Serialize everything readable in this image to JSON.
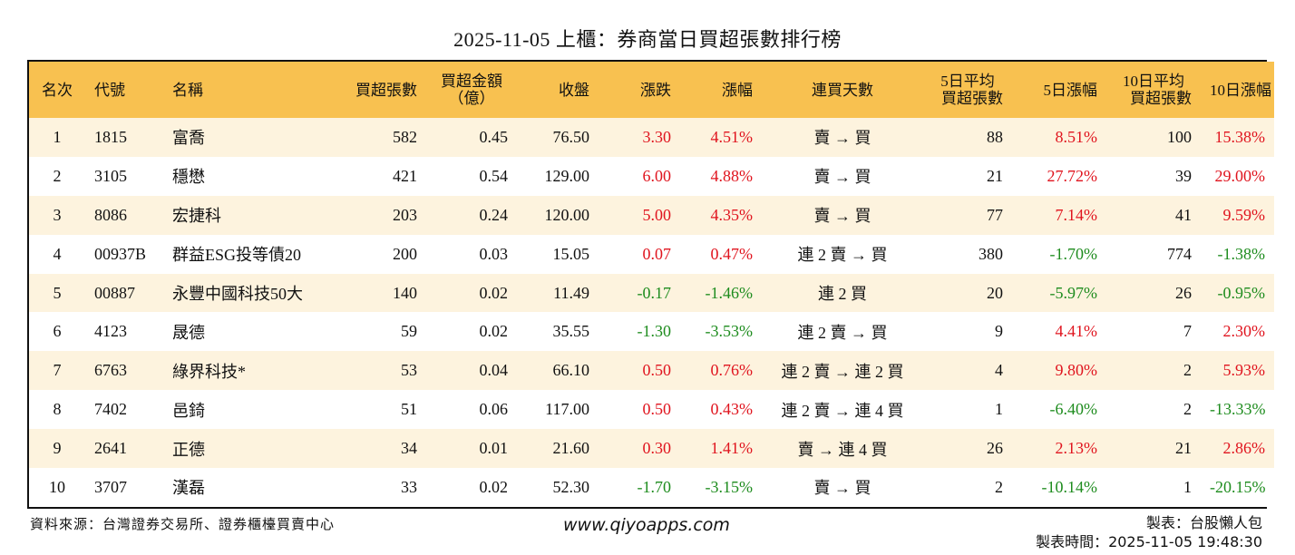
{
  "title": "2025-11-05 上櫃：券商當日買超張數排行榜",
  "colors": {
    "header_bg": "#F8C150",
    "row_alt_bg": "#FDF3DE",
    "row_bg": "#FFFFFF",
    "up": "#E0141E",
    "down": "#1E8C1E",
    "border": "#111111"
  },
  "table": {
    "headers": [
      {
        "key": "rank",
        "label": "名次"
      },
      {
        "key": "code",
        "label": "代號"
      },
      {
        "key": "name",
        "label": "名稱"
      },
      {
        "key": "net_buy_lots",
        "label": "買超張數"
      },
      {
        "key": "net_buy_amount",
        "label": "買超金額",
        "label2": "（億）"
      },
      {
        "key": "close",
        "label": "收盤"
      },
      {
        "key": "change",
        "label": "漲跌"
      },
      {
        "key": "change_pct",
        "label": "漲幅"
      },
      {
        "key": "streak",
        "label": "連買天數"
      },
      {
        "key": "avg5_net_buy",
        "label": "5日平均",
        "label2": "買超張數"
      },
      {
        "key": "pct5",
        "label": "5日漲幅"
      },
      {
        "key": "avg10_net_buy",
        "label": "10日平均",
        "label2": "買超張數"
      },
      {
        "key": "pct10",
        "label": "10日漲幅"
      }
    ],
    "rows": [
      {
        "rank": "1",
        "code": "1815",
        "name": "富喬",
        "net_buy_lots": "582",
        "net_buy_amount": "0.45",
        "close": "76.50",
        "change": "3.30",
        "change_pct": "4.51%",
        "streak": "賣 → 買",
        "avg5_net_buy": "88",
        "pct5": "8.51%",
        "avg10_net_buy": "100",
        "pct10": "15.38%"
      },
      {
        "rank": "2",
        "code": "3105",
        "name": "穩懋",
        "net_buy_lots": "421",
        "net_buy_amount": "0.54",
        "close": "129.00",
        "change": "6.00",
        "change_pct": "4.88%",
        "streak": "賣 → 買",
        "avg5_net_buy": "21",
        "pct5": "27.72%",
        "avg10_net_buy": "39",
        "pct10": "29.00%"
      },
      {
        "rank": "3",
        "code": "8086",
        "name": "宏捷科",
        "net_buy_lots": "203",
        "net_buy_amount": "0.24",
        "close": "120.00",
        "change": "5.00",
        "change_pct": "4.35%",
        "streak": "賣 → 買",
        "avg5_net_buy": "77",
        "pct5": "7.14%",
        "avg10_net_buy": "41",
        "pct10": "9.59%"
      },
      {
        "rank": "4",
        "code": "00937B",
        "name": "群益ESG投等債20",
        "net_buy_lots": "200",
        "net_buy_amount": "0.03",
        "close": "15.05",
        "change": "0.07",
        "change_pct": "0.47%",
        "streak": "連 2 賣 → 買",
        "avg5_net_buy": "380",
        "pct5": "-1.70%",
        "avg10_net_buy": "774",
        "pct10": "-1.38%"
      },
      {
        "rank": "5",
        "code": "00887",
        "name": "永豐中國科技50大",
        "net_buy_lots": "140",
        "net_buy_amount": "0.02",
        "close": "11.49",
        "change": "-0.17",
        "change_pct": "-1.46%",
        "streak": "連 2 買",
        "avg5_net_buy": "20",
        "pct5": "-5.97%",
        "avg10_net_buy": "26",
        "pct10": "-0.95%"
      },
      {
        "rank": "6",
        "code": "4123",
        "name": "晟德",
        "net_buy_lots": "59",
        "net_buy_amount": "0.02",
        "close": "35.55",
        "change": "-1.30",
        "change_pct": "-3.53%",
        "streak": "連 2 賣 → 買",
        "avg5_net_buy": "9",
        "pct5": "4.41%",
        "avg10_net_buy": "7",
        "pct10": "2.30%"
      },
      {
        "rank": "7",
        "code": "6763",
        "name": "綠界科技*",
        "net_buy_lots": "53",
        "net_buy_amount": "0.04",
        "close": "66.10",
        "change": "0.50",
        "change_pct": "0.76%",
        "streak": "連 2 賣 → 連 2 買",
        "avg5_net_buy": "4",
        "pct5": "9.80%",
        "avg10_net_buy": "2",
        "pct10": "5.93%"
      },
      {
        "rank": "8",
        "code": "7402",
        "name": "邑錡",
        "net_buy_lots": "51",
        "net_buy_amount": "0.06",
        "close": "117.00",
        "change": "0.50",
        "change_pct": "0.43%",
        "streak": "連 2 賣 → 連 4 買",
        "avg5_net_buy": "1",
        "pct5": "-6.40%",
        "avg10_net_buy": "2",
        "pct10": "-13.33%"
      },
      {
        "rank": "9",
        "code": "2641",
        "name": "正德",
        "net_buy_lots": "34",
        "net_buy_amount": "0.01",
        "close": "21.60",
        "change": "0.30",
        "change_pct": "1.41%",
        "streak": "賣 → 連 4 買",
        "avg5_net_buy": "26",
        "pct5": "2.13%",
        "avg10_net_buy": "21",
        "pct10": "2.86%"
      },
      {
        "rank": "10",
        "code": "3707",
        "name": "漢磊",
        "net_buy_lots": "33",
        "net_buy_amount": "0.02",
        "close": "52.30",
        "change": "-1.70",
        "change_pct": "-3.15%",
        "streak": "賣 → 買",
        "avg5_net_buy": "2",
        "pct5": "-10.14%",
        "avg10_net_buy": "1",
        "pct10": "-20.15%"
      }
    ]
  },
  "footer": {
    "source": "資料來源：台灣證券交易所、證券櫃檯買賣中心",
    "website": "www.qiyoapps.com",
    "author": "製表：台股懶人包",
    "made_time": "製表時間：2025-11-05 19:48:30"
  }
}
